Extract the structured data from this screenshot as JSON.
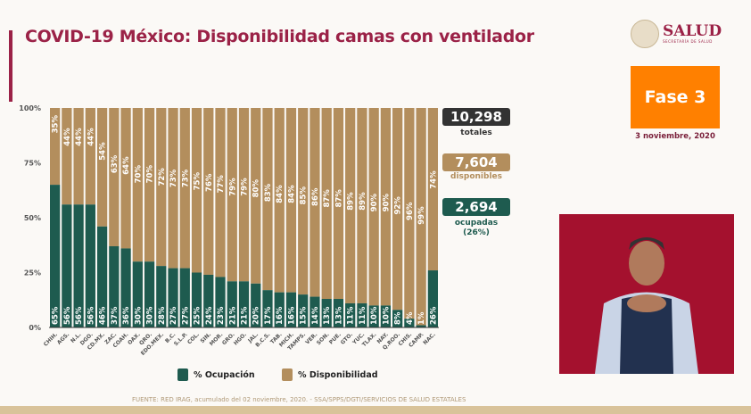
{
  "header": {
    "title": "COVID-19 México: Disponibilidad camas con ventilador",
    "logo_text": "SALUD",
    "logo_subtext": "SECRETARÍA DE SALUD",
    "phase": "Fase 3",
    "date": "3 noviembre, 2020"
  },
  "kpis": {
    "total": {
      "value": "10,298",
      "label": "totales",
      "color": "#333333"
    },
    "available": {
      "value": "7,604",
      "label": "disponibles",
      "color": "#b38e5d"
    },
    "occupied": {
      "value": "2,694",
      "label": "ocupadas",
      "sub": "(26%)",
      "color": "#1e5b4f"
    }
  },
  "footer": {
    "source": "FUENTE: RED IRAG, acumulado del 02 noviembre, 2020. -  SSA/SPPS/DGTI/SERVICIOS DE SALUD ESTATALES"
  },
  "chart_data": {
    "type": "bar",
    "stacked": true,
    "title": "",
    "xlabel": "",
    "ylabel": "",
    "ylim": [
      0,
      100
    ],
    "yticks": [
      "0%",
      "25%",
      "50%",
      "75%",
      "100%"
    ],
    "categories": [
      "CHIH.",
      "AGS.",
      "N.L.",
      "DGO.",
      "CD.MX.",
      "ZAC.",
      "COAH.",
      "OAX.",
      "QRO.",
      "EDO.MEX.",
      "B.C.",
      "S.L.P.",
      "COL.",
      "SIN.",
      "MOR.",
      "GRO.",
      "HGO.",
      "JAL.",
      "B.C.S.",
      "TAB.",
      "MICH.",
      "TAMPS.",
      "VER.",
      "SON.",
      "PUE.",
      "GTO.",
      "YUC.",
      "TLAX.",
      "NAY.",
      "Q.ROO.",
      "CHIS.",
      "CAMP.",
      "NAC."
    ],
    "series": [
      {
        "name": "% Ocupación",
        "color": "#1e5b4f",
        "values": [
          65,
          56,
          56,
          56,
          46,
          37,
          36,
          30,
          30,
          28,
          27,
          27,
          25,
          24,
          23,
          21,
          21,
          20,
          17,
          16,
          16,
          15,
          14,
          13,
          13,
          11,
          11,
          10,
          10,
          8,
          4,
          1,
          26
        ]
      },
      {
        "name": "% Disponibilidad",
        "color": "#b38e5d",
        "values": [
          35,
          44,
          44,
          44,
          54,
          63,
          64,
          70,
          70,
          72,
          73,
          73,
          75,
          76,
          77,
          79,
          79,
          80,
          83,
          84,
          84,
          85,
          86,
          87,
          87,
          89,
          89,
          90,
          90,
          92,
          96,
          99,
          74
        ]
      }
    ],
    "legend": "bottom"
  }
}
